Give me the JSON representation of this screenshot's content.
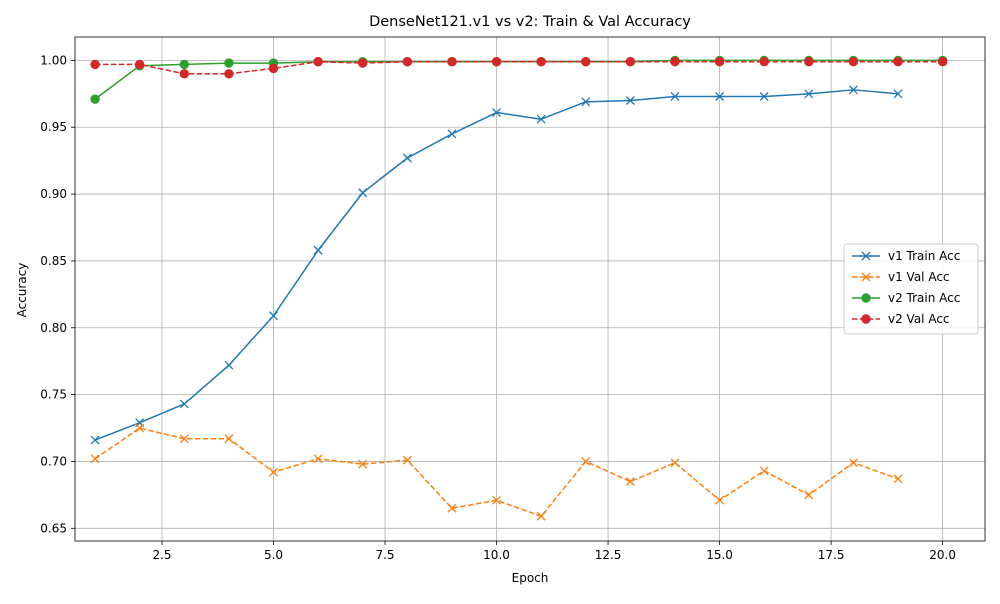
{
  "chart_data": {
    "type": "line",
    "title": "DenseNet121.v1 vs v2: Train & Val Accuracy",
    "xlabel": "Epoch",
    "ylabel": "Accuracy",
    "xlim": [
      0.55,
      20.95
    ],
    "ylim": [
      0.6405,
      1.0175
    ],
    "xticks": [
      2.5,
      5.0,
      7.5,
      10.0,
      12.5,
      15.0,
      17.5,
      20.0
    ],
    "xtick_labels": [
      "2.5",
      "5.0",
      "7.5",
      "10.0",
      "12.5",
      "15.0",
      "17.5",
      "20.0"
    ],
    "yticks": [
      0.65,
      0.7,
      0.75,
      0.8,
      0.85,
      0.9,
      0.95,
      1.0
    ],
    "ytick_labels": [
      "0.65",
      "0.70",
      "0.75",
      "0.80",
      "0.85",
      "0.90",
      "0.95",
      "1.00"
    ],
    "grid": true,
    "legend_position": "center-right",
    "series": [
      {
        "name": "v1 Train Acc",
        "color": "#1f77b4",
        "dash": "solid",
        "marker": "x",
        "x": [
          1,
          2,
          3,
          4,
          5,
          6,
          7,
          8,
          9,
          10,
          11,
          12,
          13,
          14,
          15,
          16,
          17,
          18,
          19
        ],
        "y": [
          0.716,
          0.729,
          0.743,
          0.772,
          0.809,
          0.858,
          0.901,
          0.927,
          0.945,
          0.961,
          0.956,
          0.969,
          0.97,
          0.973,
          0.973,
          0.973,
          0.975,
          0.978,
          0.975
        ]
      },
      {
        "name": "v1 Val Acc",
        "color": "#ff7f0e",
        "dash": "dashed",
        "marker": "x",
        "x": [
          1,
          2,
          3,
          4,
          5,
          6,
          7,
          8,
          9,
          10,
          11,
          12,
          13,
          14,
          15,
          16,
          17,
          18,
          19
        ],
        "y": [
          0.702,
          0.725,
          0.717,
          0.717,
          0.692,
          0.702,
          0.698,
          0.701,
          0.665,
          0.671,
          0.659,
          0.7,
          0.685,
          0.699,
          0.671,
          0.693,
          0.675,
          0.699,
          0.687
        ]
      },
      {
        "name": "v2 Train Acc",
        "color": "#2ca02c",
        "dash": "solid",
        "marker": "o",
        "x": [
          1,
          2,
          3,
          4,
          5,
          6,
          7,
          8,
          9,
          10,
          11,
          12,
          13,
          14,
          15,
          16,
          17,
          18,
          19,
          20
        ],
        "y": [
          0.971,
          0.996,
          0.997,
          0.998,
          0.998,
          0.999,
          0.999,
          0.999,
          0.999,
          0.999,
          0.999,
          0.999,
          0.999,
          1.0,
          1.0,
          1.0,
          1.0,
          1.0,
          1.0,
          1.0
        ]
      },
      {
        "name": "v2 Val Acc",
        "color": "#d62728",
        "dash": "dashed",
        "marker": "o",
        "x": [
          1,
          2,
          3,
          4,
          5,
          6,
          7,
          8,
          9,
          10,
          11,
          12,
          13,
          14,
          15,
          16,
          17,
          18,
          19,
          20
        ],
        "y": [
          0.997,
          0.997,
          0.99,
          0.99,
          0.994,
          0.999,
          0.998,
          0.999,
          0.999,
          0.999,
          0.999,
          0.999,
          0.999,
          0.999,
          0.999,
          0.999,
          0.999,
          0.999,
          0.999,
          0.999
        ]
      }
    ]
  }
}
